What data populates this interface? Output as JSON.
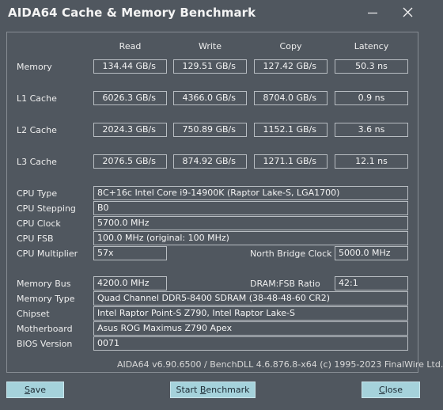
{
  "window": {
    "title": "AIDA64 Cache & Memory Benchmark"
  },
  "headers": {
    "read": "Read",
    "write": "Write",
    "copy": "Copy",
    "latency": "Latency"
  },
  "bench_rows": [
    {
      "label": "Memory",
      "read": "134.44 GB/s",
      "write": "129.51 GB/s",
      "copy": "127.42 GB/s",
      "latency": "50.3 ns"
    },
    {
      "label": "L1 Cache",
      "read": "6026.3 GB/s",
      "write": "4366.0 GB/s",
      "copy": "8704.0 GB/s",
      "latency": "0.9 ns"
    },
    {
      "label": "L2 Cache",
      "read": "2024.3 GB/s",
      "write": "750.89 GB/s",
      "copy": "1152.1 GB/s",
      "latency": "3.6 ns"
    },
    {
      "label": "L3 Cache",
      "read": "2076.5 GB/s",
      "write": "874.92 GB/s",
      "copy": "1271.1 GB/s",
      "latency": "12.1 ns"
    }
  ],
  "cpu": {
    "type_label": "CPU Type",
    "type_value": "8C+16c Intel Core i9-14900K  (Raptor Lake-S, LGA1700)",
    "stepping_label": "CPU Stepping",
    "stepping_value": "B0",
    "clock_label": "CPU Clock",
    "clock_value": "5700.0 MHz",
    "fsb_label": "CPU FSB",
    "fsb_value": "100.0 MHz  (original: 100 MHz)",
    "multiplier_label": "CPU Multiplier",
    "multiplier_value": "57x",
    "nb_clock_label": "North Bridge Clock",
    "nb_clock_value": "5000.0 MHz"
  },
  "memory": {
    "bus_label": "Memory Bus",
    "bus_value": "4200.0 MHz",
    "ratio_label": "DRAM:FSB Ratio",
    "ratio_value": "42:1",
    "type_label": "Memory Type",
    "type_value": "Quad Channel DDR5-8400 SDRAM  (38-48-48-60 CR2)",
    "chipset_label": "Chipset",
    "chipset_value": "Intel Raptor Point-S Z790, Intel Raptor Lake-S",
    "mb_label": "Motherboard",
    "mb_value": "Asus ROG Maximus Z790 Apex",
    "bios_label": "BIOS Version",
    "bios_value": "0071"
  },
  "footer": "AIDA64 v6.90.6500 / BenchDLL 4.6.876.8-x64  (c) 1995-2023 FinalWire Ltd.",
  "buttons": {
    "save_pre": "",
    "save_u": "S",
    "save_post": "ave",
    "start_pre": "Start ",
    "start_u": "B",
    "start_post": "enchmark",
    "close_pre": "",
    "close_u": "C",
    "close_post": "lose"
  },
  "colors": {
    "background": "#50575f",
    "button_bg": "#a5d2db",
    "border": "#b8bdc2"
  },
  "icons": {
    "minimize": "minimize-icon",
    "close": "close-icon"
  }
}
